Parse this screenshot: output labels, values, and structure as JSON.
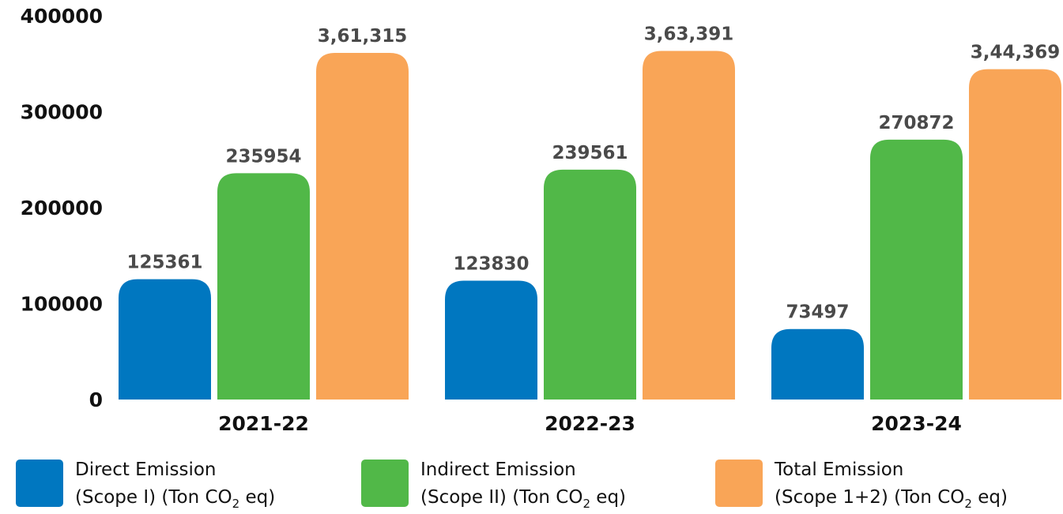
{
  "chart_data": {
    "type": "bar",
    "title": "",
    "xlabel": "",
    "ylabel": "",
    "categories": [
      "2021-22",
      "2022-23",
      "2023-24"
    ],
    "ylim": [
      0,
      400000
    ],
    "yticks": [
      "0",
      "100000",
      "200000",
      "300000",
      "400000"
    ],
    "grid": false,
    "legend_position": "bottom",
    "series": [
      {
        "name": "Direct Emission (Scope I) (Ton CO2 eq)",
        "color": "#0077C0",
        "values": [
          125361,
          123830,
          73497
        ],
        "labels": [
          "125361",
          "123830",
          "73497"
        ]
      },
      {
        "name": "Indirect Emission (Scope II) (Ton CO2 eq)",
        "color": "#51B848",
        "values": [
          235954,
          239561,
          270872
        ],
        "labels": [
          "235954",
          "239561",
          "270872"
        ]
      },
      {
        "name": "Total Emission (Scope 1+2) (Ton CO2 eq)",
        "color": "#F9A557",
        "values": [
          361315,
          363391,
          344369
        ],
        "labels": [
          "3,61,315",
          "3,63,391",
          "3,44,369"
        ]
      }
    ]
  },
  "legend": [
    {
      "line1": "Direct Emission",
      "line2_pre": "(Scope I) (Ton CO",
      "line2_sub": "2",
      "line2_post": " eq)"
    },
    {
      "line1": "Indirect Emission",
      "line2_pre": "(Scope II) (Ton CO",
      "line2_sub": "2",
      "line2_post": " eq)"
    },
    {
      "line1": "Total Emission",
      "line2_pre": "(Scope 1+2) (Ton CO",
      "line2_sub": "2",
      "line2_post": " eq)"
    }
  ]
}
